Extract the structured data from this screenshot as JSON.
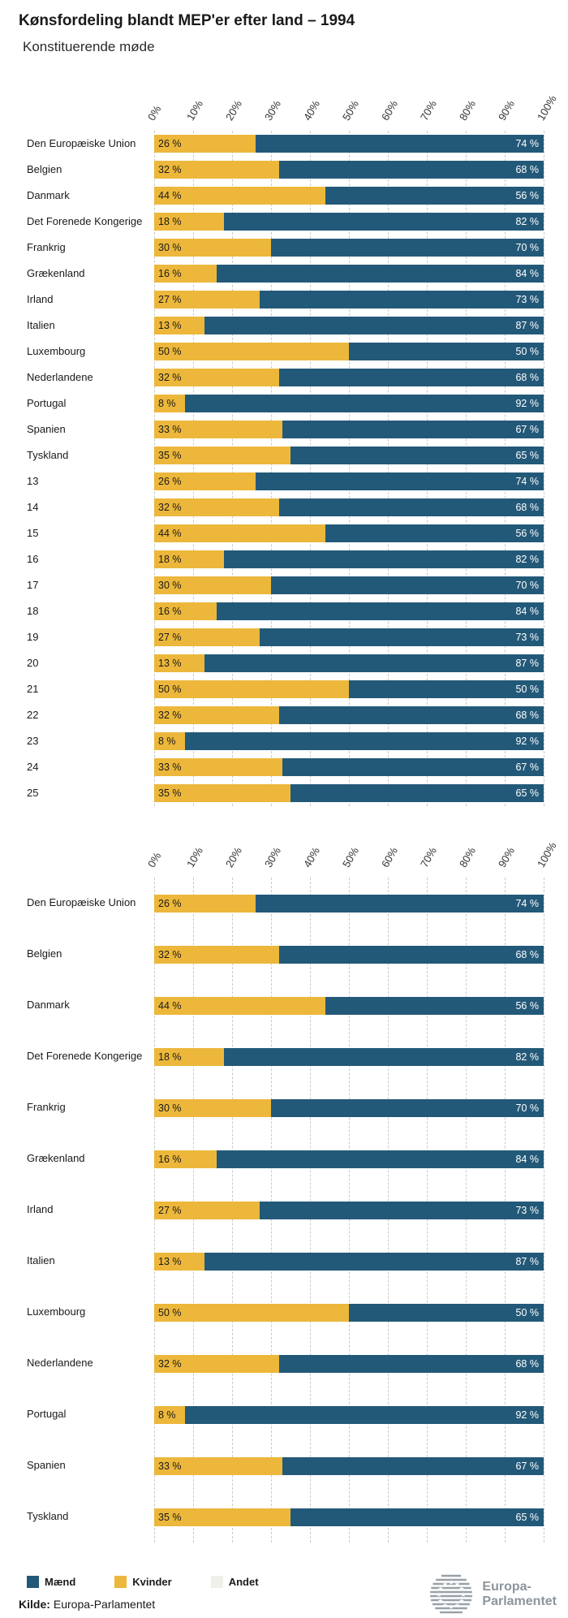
{
  "header": {
    "title": "Kønsfordeling blandt MEP'er efter land – 1994",
    "subtitle": "Konstituerende møde"
  },
  "legend": {
    "position": "bottom",
    "items": [
      {
        "label": "Mænd",
        "color": "#235978"
      },
      {
        "label": "Kvinder",
        "color": "#ECB73B"
      },
      {
        "label": "Andet",
        "color": "#F0F0EB"
      }
    ]
  },
  "footer": {
    "source_label": "Kilde:",
    "source_text": "Europa-Parlamentet",
    "logo_line1": "Europa-",
    "logo_line2": "Parlamentet"
  },
  "colors": {
    "maend": "#235978",
    "kvinder": "#ECB73B",
    "andet": "#F0F0EB",
    "grid": "#c9c9c9"
  },
  "chart_data": [
    {
      "type": "bar",
      "orientation": "horizontal",
      "stacked": true,
      "unit": "%",
      "xlim": [
        0,
        100
      ],
      "grid": true,
      "x_ticks": [
        "0%",
        "10%",
        "20%",
        "30%",
        "40%",
        "50%",
        "60%",
        "70%",
        "80%",
        "90%",
        "100%"
      ],
      "categories": [
        "Den Europæiske Union",
        "Belgien",
        "Danmark",
        "Det Forenede Kongerige",
        "Frankrig",
        "Grækenland",
        "Irland",
        "Italien",
        "Luxembourg",
        "Nederlandene",
        "Portugal",
        "Spanien",
        "Tyskland",
        "13",
        "14",
        "15",
        "16",
        "17",
        "18",
        "19",
        "20",
        "21",
        "22",
        "23",
        "24",
        "25"
      ],
      "series": [
        {
          "name": "Kvinder",
          "color": "#ECB73B",
          "values": [
            26,
            32,
            44,
            18,
            30,
            16,
            27,
            13,
            50,
            32,
            8,
            33,
            35,
            26,
            32,
            44,
            18,
            30,
            16,
            27,
            13,
            50,
            32,
            8,
            33,
            35
          ]
        },
        {
          "name": "Mænd",
          "color": "#235978",
          "values": [
            74,
            68,
            56,
            82,
            70,
            84,
            73,
            87,
            50,
            68,
            92,
            67,
            65,
            74,
            68,
            56,
            82,
            70,
            84,
            73,
            87,
            50,
            68,
            92,
            67,
            65
          ]
        }
      ]
    },
    {
      "type": "bar",
      "orientation": "horizontal",
      "stacked": true,
      "unit": "%",
      "xlim": [
        0,
        100
      ],
      "grid": true,
      "x_ticks": [
        "0%",
        "10%",
        "20%",
        "30%",
        "40%",
        "50%",
        "60%",
        "70%",
        "80%",
        "90%",
        "100%"
      ],
      "categories": [
        "Den Europæiske Union",
        "Belgien",
        "Danmark",
        "Det Forenede Kongerige",
        "Frankrig",
        "Grækenland",
        "Irland",
        "Italien",
        "Luxembourg",
        "Nederlandene",
        "Portugal",
        "Spanien",
        "Tyskland"
      ],
      "series": [
        {
          "name": "Kvinder",
          "color": "#ECB73B",
          "values": [
            26,
            32,
            44,
            18,
            30,
            16,
            27,
            13,
            50,
            32,
            8,
            33,
            35
          ]
        },
        {
          "name": "Mænd",
          "color": "#235978",
          "values": [
            74,
            68,
            56,
            82,
            70,
            84,
            73,
            87,
            50,
            68,
            92,
            67,
            65
          ]
        }
      ]
    }
  ]
}
